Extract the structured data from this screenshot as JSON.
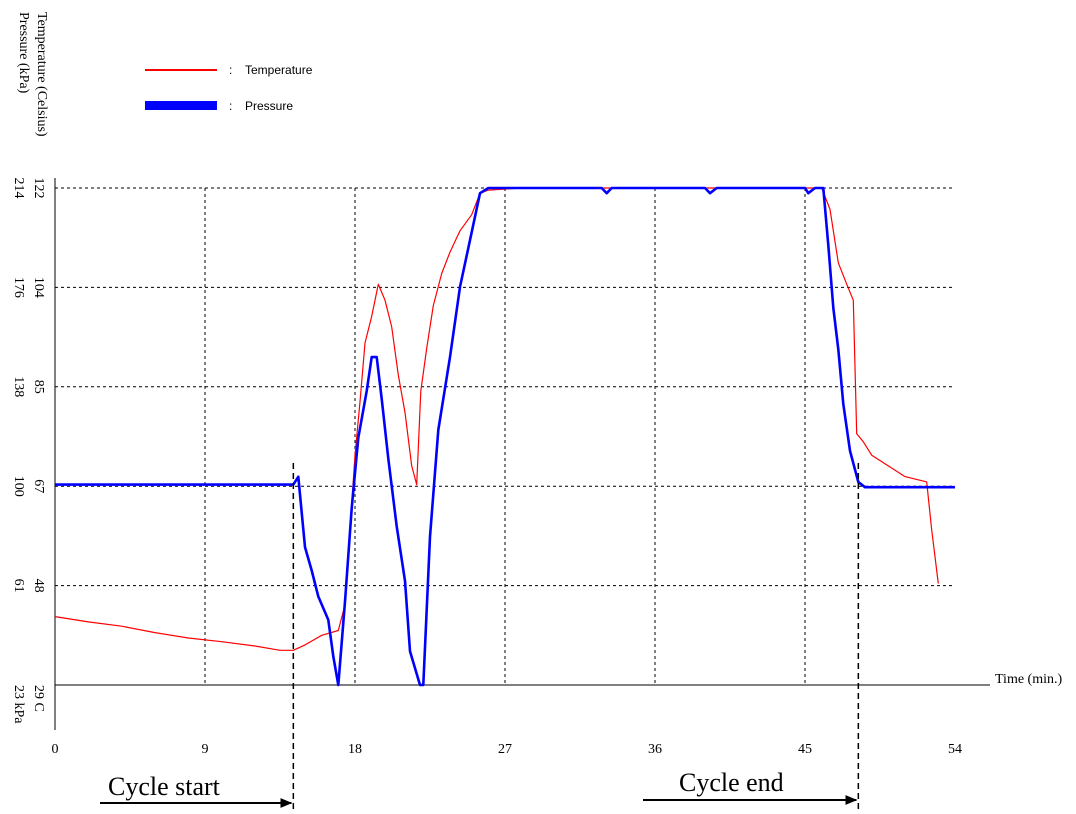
{
  "chart_data": {
    "type": "line",
    "xlabel": "Time (min.)",
    "x_ticks": [
      "0",
      "9",
      "18",
      "27",
      "36",
      "45",
      "54"
    ],
    "xlim": [
      0,
      54
    ],
    "y_axis_titles": {
      "temperature": "Temperature (Celsius)",
      "pressure": "Pressure (kPa)"
    },
    "temp_ticks": [
      "29",
      "48",
      "67",
      "85",
      "104",
      "122"
    ],
    "pressure_ticks": [
      "23",
      "61",
      "100",
      "138",
      "176",
      "214"
    ],
    "temp_unit": "C",
    "pressure_unit": "kPa",
    "temp_range": [
      29,
      122
    ],
    "pressure_range": [
      23,
      214
    ],
    "grid": true,
    "legend": {
      "placement": "top-left",
      "entries": [
        {
          "label": "Temperature",
          "separator": ":",
          "color": "#ff0000"
        },
        {
          "label": "Pressure",
          "separator": ":",
          "color": "#0000ff"
        }
      ]
    },
    "series": [
      {
        "name": "Temperature",
        "color": "#ff0000",
        "unit": "C",
        "points": [
          [
            0,
            41.8
          ],
          [
            2,
            40.8
          ],
          [
            4,
            40
          ],
          [
            6,
            38.8
          ],
          [
            8,
            37.8
          ],
          [
            10,
            37.1
          ],
          [
            12,
            36.3
          ],
          [
            13.5,
            35.5
          ],
          [
            14.3,
            35.5
          ],
          [
            15,
            36.5
          ],
          [
            16,
            38.3
          ],
          [
            17,
            39.2
          ],
          [
            17.4,
            44
          ],
          [
            17.7,
            58
          ],
          [
            18,
            72
          ],
          [
            18.3,
            82
          ],
          [
            18.6,
            93
          ],
          [
            19,
            98
          ],
          [
            19.4,
            104
          ],
          [
            19.8,
            101
          ],
          [
            20.2,
            96
          ],
          [
            20.6,
            87
          ],
          [
            21,
            80
          ],
          [
            21.4,
            70
          ],
          [
            21.7,
            66.5
          ],
          [
            21.95,
            84
          ],
          [
            22.3,
            92
          ],
          [
            22.7,
            100
          ],
          [
            23.2,
            106
          ],
          [
            23.7,
            110
          ],
          [
            24.3,
            114
          ],
          [
            25,
            117
          ],
          [
            25.5,
            121
          ],
          [
            26,
            121.6
          ],
          [
            28,
            122
          ],
          [
            31,
            122
          ],
          [
            34,
            122
          ],
          [
            37,
            122
          ],
          [
            40,
            122
          ],
          [
            43,
            122
          ],
          [
            45,
            122
          ],
          [
            46,
            122
          ],
          [
            46.5,
            118
          ],
          [
            47,
            108
          ],
          [
            47.5,
            104
          ],
          [
            47.9,
            101
          ],
          [
            48.1,
            76
          ],
          [
            48.5,
            74.5
          ],
          [
            49,
            72
          ],
          [
            50,
            70
          ],
          [
            51,
            68
          ],
          [
            52.3,
            67
          ],
          [
            52.6,
            58
          ],
          [
            53,
            48
          ]
        ]
      },
      {
        "name": "Pressure",
        "color": "#0000ff",
        "unit": "kPa",
        "points": [
          [
            0,
            100
          ],
          [
            14.3,
            100
          ],
          [
            14.6,
            103
          ],
          [
            15,
            76
          ],
          [
            15.4,
            67
          ],
          [
            15.8,
            57
          ],
          [
            16.4,
            48
          ],
          [
            16.7,
            34
          ],
          [
            17,
            23
          ],
          [
            17.4,
            55
          ],
          [
            17.8,
            91
          ],
          [
            18.2,
            118
          ],
          [
            18.7,
            136
          ],
          [
            19,
            149
          ],
          [
            19.3,
            149
          ],
          [
            19.6,
            133
          ],
          [
            20,
            110
          ],
          [
            20.5,
            84
          ],
          [
            21,
            63
          ],
          [
            21.3,
            36
          ],
          [
            21.9,
            23
          ],
          [
            22.1,
            23
          ],
          [
            22.5,
            80
          ],
          [
            23,
            121
          ],
          [
            23.7,
            149
          ],
          [
            24.3,
            176
          ],
          [
            25,
            197
          ],
          [
            25.5,
            212
          ],
          [
            26,
            214
          ],
          [
            30,
            214
          ],
          [
            32.8,
            214
          ],
          [
            33.1,
            212
          ],
          [
            33.4,
            214
          ],
          [
            39,
            214
          ],
          [
            39.3,
            212
          ],
          [
            39.7,
            214
          ],
          [
            45,
            214
          ],
          [
            45.2,
            212
          ],
          [
            45.6,
            214
          ],
          [
            46.1,
            214
          ],
          [
            46.4,
            192
          ],
          [
            46.7,
            168
          ],
          [
            47,
            152
          ],
          [
            47.3,
            131
          ],
          [
            47.7,
            113
          ],
          [
            48.2,
            101
          ],
          [
            48.6,
            99
          ],
          [
            54,
            99
          ]
        ]
      }
    ],
    "annotations": [
      {
        "text": "Cycle start",
        "x": 14.3
      },
      {
        "text": "Cycle end",
        "x": 48.2
      }
    ]
  }
}
